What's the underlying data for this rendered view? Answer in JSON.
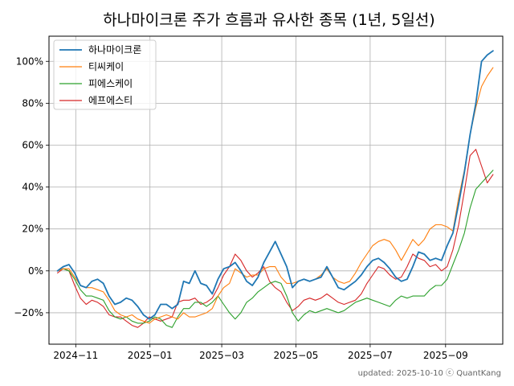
{
  "chart_data": {
    "type": "line",
    "title": "하나마이크론 주가 흐름과 유사한 종목 (1년, 5일선)",
    "xlabel": "",
    "ylabel": "",
    "x_start": "2024-10-17",
    "x_end": "2025-10-10",
    "xlim": [
      "2024-10-10",
      "2025-10-18"
    ],
    "ylim": [
      -35,
      112
    ],
    "yticks": [
      -20,
      0,
      20,
      40,
      60,
      80,
      100
    ],
    "ytick_labels": [
      "−20%",
      "0%",
      "20%",
      "40%",
      "60%",
      "80%",
      "100%"
    ],
    "xticks": [
      "2024-11-01",
      "2025-01-01",
      "2025-03-01",
      "2025-05-01",
      "2025-07-01",
      "2025-09-01"
    ],
    "xtick_labels": [
      "2024−11",
      "2025−01",
      "2025−03",
      "2025−05",
      "2025−07",
      "2025−09"
    ],
    "grid": true,
    "legend_position": "top-left",
    "footer": "updated: 2025-10-10 ⓒ QuantKang",
    "series": [
      {
        "name": "하나마이크론",
        "color": "#1f77b4",
        "values": [
          0,
          2,
          3,
          -1,
          -7,
          -8,
          -5,
          -4,
          -6,
          -12,
          -16,
          -15,
          -13,
          -14,
          -17,
          -21,
          -23,
          -21,
          -16,
          -16,
          -18,
          -16,
          -5,
          -6,
          0,
          -6,
          -7,
          -11,
          -4,
          1,
          2,
          4,
          0,
          -5,
          -7,
          -3,
          4,
          9,
          14,
          8,
          2,
          -8,
          -5,
          -4,
          -5,
          -4,
          -3,
          2,
          -3,
          -8,
          -9,
          -7,
          -5,
          -2,
          2,
          5,
          6,
          4,
          1,
          -3,
          -5,
          -4,
          2,
          9,
          8,
          5,
          6,
          5,
          12,
          18,
          32,
          47,
          65,
          80,
          100,
          103,
          105
        ]
      },
      {
        "name": "티씨케이",
        "color": "#ff7f0e",
        "values": [
          0,
          1,
          1,
          -3,
          -7,
          -8,
          -8,
          -9,
          -10,
          -14,
          -19,
          -21,
          -22,
          -21,
          -23,
          -24,
          -25,
          -23,
          -22,
          -21,
          -22,
          -23,
          -20,
          -22,
          -22,
          -21,
          -20,
          -18,
          -12,
          -8,
          -6,
          1,
          -1,
          -3,
          -2,
          -2,
          1,
          2,
          2,
          -3,
          -6,
          -6,
          -5,
          -4,
          -5,
          -4,
          -2,
          1,
          -3,
          -5,
          -6,
          -5,
          -1,
          4,
          8,
          12,
          14,
          15,
          14,
          10,
          5,
          10,
          15,
          12,
          15,
          20,
          22,
          22,
          21,
          19,
          35,
          48,
          65,
          78,
          88,
          93,
          97
        ]
      },
      {
        "name": "피에스케이",
        "color": "#2ca02c",
        "values": [
          0,
          1,
          0,
          -4,
          -9,
          -12,
          -12,
          -13,
          -14,
          -19,
          -22,
          -23,
          -22,
          -24,
          -25,
          -25,
          -24,
          -22,
          -23,
          -26,
          -27,
          -22,
          -18,
          -18,
          -15,
          -15,
          -17,
          -15,
          -12,
          -16,
          -20,
          -23,
          -20,
          -15,
          -13,
          -10,
          -8,
          -6,
          -5,
          -6,
          -12,
          -20,
          -24,
          -21,
          -19,
          -20,
          -19,
          -18,
          -19,
          -20,
          -19,
          -17,
          -15,
          -14,
          -13,
          -14,
          -15,
          -16,
          -17,
          -14,
          -12,
          -13,
          -12,
          -12,
          -12,
          -9,
          -7,
          -7,
          -4,
          3,
          10,
          18,
          30,
          39,
          42,
          45,
          48
        ]
      },
      {
        "name": "에프에스티",
        "color": "#d62728",
        "values": [
          -1,
          1,
          0,
          -7,
          -13,
          -16,
          -14,
          -15,
          -17,
          -21,
          -22,
          -22,
          -24,
          -26,
          -27,
          -25,
          -22,
          -23,
          -24,
          -23,
          -22,
          -15,
          -14,
          -14,
          -13,
          -16,
          -15,
          -13,
          -8,
          -2,
          2,
          8,
          5,
          0,
          -3,
          -1,
          2,
          -5,
          -8,
          -10,
          -15,
          -19,
          -17,
          -14,
          -13,
          -14,
          -13,
          -11,
          -13,
          -15,
          -16,
          -15,
          -14,
          -11,
          -6,
          -2,
          2,
          1,
          -2,
          -4,
          -3,
          2,
          8,
          6,
          5,
          2,
          3,
          0,
          2,
          10,
          22,
          38,
          55,
          58,
          50,
          42,
          46
        ]
      }
    ]
  }
}
